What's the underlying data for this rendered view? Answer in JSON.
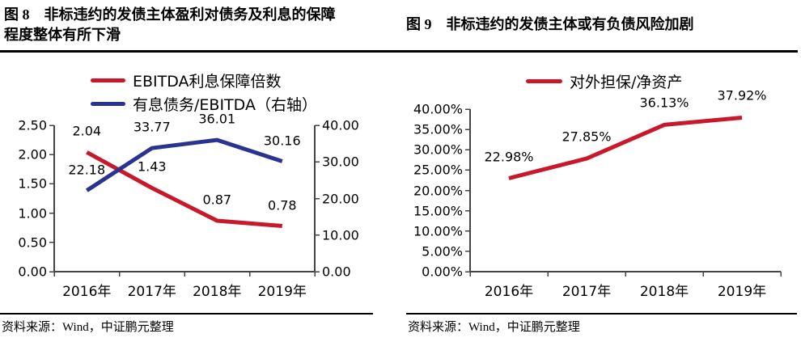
{
  "chart_data": [
    {
      "type": "line",
      "title": "图 8　非标违约的发债主体盈利对债务及利息的保障程度整体有所下滑",
      "categories": [
        "2016年",
        "2017年",
        "2018年",
        "2019年"
      ],
      "series": [
        {
          "name": "EBITDA利息保障倍数",
          "color": "#C9182C",
          "axis": "left",
          "values": [
            2.04,
            1.43,
            0.87,
            0.78
          ],
          "labels": [
            "2.04",
            "1.43",
            "0.87",
            "0.78"
          ]
        },
        {
          "name": "有息债务/EBITDA（右轴）",
          "color": "#2A3490",
          "axis": "right",
          "values": [
            22.18,
            33.77,
            36.01,
            30.16
          ],
          "labels": [
            "22.18",
            "33.77",
            "36.01",
            "30.16"
          ]
        }
      ],
      "axes": {
        "left": {
          "min": 0,
          "max": 2.5,
          "ticks": [
            "2.50",
            "2.00",
            "1.50",
            "1.00",
            "0.50",
            "0.00"
          ]
        },
        "right": {
          "min": 0,
          "max": 40,
          "ticks": [
            "40.00",
            "30.00",
            "20.00",
            "10.00",
            "0.00"
          ]
        }
      },
      "legend_position": "top",
      "grid": false,
      "xlabel": "",
      "ylabel": "",
      "source": "资料来源：Wind，中证鹏元整理"
    },
    {
      "type": "line",
      "title": "图 9　非标违约的发债主体或有负债风险加剧",
      "categories": [
        "2016年",
        "2017年",
        "2018年",
        "2019年"
      ],
      "series": [
        {
          "name": "对外担保/净资产",
          "color": "#C9182C",
          "axis": "left",
          "values": [
            22.98,
            27.85,
            36.13,
            37.92
          ],
          "labels": [
            "22.98%",
            "27.85%",
            "36.13%",
            "37.92%"
          ]
        }
      ],
      "axes": {
        "left": {
          "min": 0,
          "max": 40,
          "ticks": [
            "40.00%",
            "35.00%",
            "30.00%",
            "25.00%",
            "20.00%",
            "15.00%",
            "10.00%",
            "5.00%",
            "0.00%"
          ]
        }
      },
      "legend_position": "top",
      "grid": false,
      "xlabel": "",
      "ylabel": "",
      "source": "资料来源：Wind，中证鹏元整理"
    }
  ]
}
